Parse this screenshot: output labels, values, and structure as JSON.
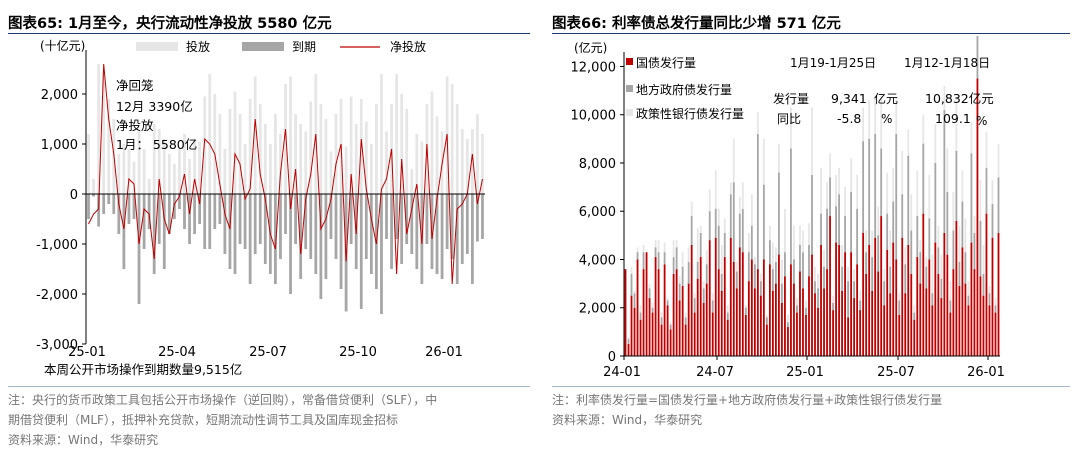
{
  "left_panel": {
    "title": "图表65:  1月至今，央行流动性净投放 5580 亿元",
    "notes": [
      "注：央行的货币政策工具包括公开市场操作（逆回购），常备借贷便利（SLF），中",
      "期借贷便利（MLF），抵押补充贷款，短期流动性调节工具及国库现金招标"
    ],
    "source": "资料来源：Wind，华泰研究"
  },
  "right_panel": {
    "title": "图表66:  利率债总发行量同比少增 571 亿元",
    "notes": [
      "注：利率债发行量=国债发行量+地方政府债发行量+政策性银行债发行量"
    ],
    "source": "资料来源：Wind，华泰研究"
  },
  "chart_data": [
    {
      "type": "bar",
      "unit_label": "(十亿元)",
      "ylim": [
        -3000,
        2800
      ],
      "yticks": [
        "2,000",
        "1,000",
        "0",
        "-1,000",
        "-2,000",
        "-3,000"
      ],
      "xticks": [
        "25-01",
        "25-04",
        "25-07",
        "25-10",
        "26-01"
      ],
      "legend": {
        "placement": "top",
        "items": [
          "投放",
          "到期",
          "净投放"
        ]
      },
      "colors": {
        "inject": "#e6e6e6",
        "mature": "#a6a6a6",
        "net": "#c00000"
      },
      "annotations": [
        "净回笼",
        "12月   3390亿",
        "净投放",
        "1月：  5580亿"
      ],
      "footer_text": "本周公开市场操作到期数量9,515亿",
      "series": [
        {
          "name": "投放",
          "values": [
            1200,
            300,
            2600,
            2450,
            1900,
            1500,
            800,
            1000,
            900,
            650,
            1250,
            900,
            300,
            1400,
            1300,
            1100,
            800,
            600,
            900,
            1200,
            700,
            1100,
            1050,
            1950,
            2400,
            2000,
            1600,
            900,
            1700,
            2050,
            1600,
            1000,
            1900,
            2350,
            1800,
            1400,
            1000,
            1600,
            1200,
            2200,
            2350,
            1600,
            1400,
            1250,
            1850,
            2400,
            1800,
            1500,
            850,
            1600,
            1900,
            950,
            1950,
            1400,
            1900,
            1450,
            1000,
            1800,
            2400,
            1250,
            1800,
            2400,
            2000,
            1700,
            500,
            1200,
            1050,
            1800,
            2050,
            1550,
            1250,
            2350,
            2200,
            1800,
            1300,
            1100,
            1300,
            1600,
            1200
          ]
        },
        {
          "name": "到期",
          "values": [
            -500,
            -50,
            -650,
            -400,
            -200,
            -400,
            -800,
            -1500,
            -600,
            -500,
            -2200,
            -1100,
            -700,
            -1600,
            -1000,
            -1500,
            -800,
            -500,
            -300,
            -700,
            -1000,
            -800,
            -600,
            -1100,
            -1100,
            -700,
            -600,
            -1200,
            -1500,
            -1600,
            -1000,
            -1100,
            -1800,
            -1200,
            -1000,
            -1400,
            -1600,
            -1800,
            -1300,
            -800,
            -2000,
            -1000,
            -1700,
            -1100,
            -1300,
            -1600,
            -2100,
            -1700,
            -900,
            -1300,
            -1900,
            -2350,
            -1000,
            -1500,
            -2300,
            -1300,
            -1600,
            -1900,
            -2400,
            -900,
            -1500,
            -900,
            -1400,
            -1000,
            -1200,
            -1500,
            -1800,
            -1000,
            -1500,
            -1600,
            -1700,
            -1100,
            -1300,
            -1800,
            -1400,
            -1200,
            -1800,
            -950,
            -900
          ]
        },
        {
          "name": "净投放",
          "values": [
            -600,
            -400,
            -300,
            2600,
            1500,
            800,
            -200,
            -700,
            300,
            200,
            -1000,
            -300,
            -400,
            -1300,
            300,
            -500,
            -800,
            -200,
            -50,
            400,
            -400,
            300,
            -200,
            1100,
            1000,
            800,
            200,
            -400,
            -700,
            800,
            600,
            -100,
            100,
            1500,
            400,
            -100,
            -800,
            -1100,
            400,
            1300,
            -300,
            500,
            -1200,
            -100,
            400,
            1200,
            -700,
            -500,
            -100,
            600,
            1000,
            -1350,
            400,
            -800,
            1100,
            100,
            -500,
            -1000,
            100,
            300,
            900,
            -1600,
            700,
            -800,
            -300,
            200,
            -1000,
            1000,
            -900,
            -100,
            600,
            1200,
            -1800,
            -300,
            -200,
            0,
            800,
            -200,
            300
          ]
        }
      ]
    },
    {
      "type": "bar",
      "unit_label": "(亿元)",
      "ylim": [
        0,
        12600
      ],
      "yticks": [
        "12,000",
        "10,000",
        "8,000",
        "6,000",
        "4,000",
        "2,000",
        "0"
      ],
      "xticks": [
        "24-01",
        "24-07",
        "25-01",
        "25-07",
        "26-01"
      ],
      "legend": {
        "placement": "top-left",
        "items": [
          "国债发行量",
          "地方政府债发行量",
          "政策性银行债发行量"
        ]
      },
      "colors": {
        "gov": "#c00000",
        "local": "#a6a6a6",
        "policy": "#e6e6e6"
      },
      "table": {
        "headers": [
          "1月19-1月25日",
          "1月12-1月18日"
        ],
        "rows": [
          {
            "label": "发行量",
            "v1": "9,341",
            "u1": "亿元",
            "v2": "10,832亿元"
          },
          {
            "label": "同比",
            "v1": "-5.8",
            "u1": "%",
            "v2": "109.1",
            "u2": "%"
          }
        ]
      },
      "series": [
        {
          "name": "国债发行量",
          "values": [
            3600,
            500,
            2500,
            2000,
            4000,
            1500,
            3600,
            4300,
            2400,
            1800,
            4100,
            3600,
            1300,
            3800,
            2100,
            1100,
            3400,
            3600,
            2300,
            2900,
            1300,
            3000,
            4600,
            1800,
            3200,
            4100,
            2200,
            3000,
            4800,
            1800,
            4900,
            3600,
            2700,
            4100,
            1500,
            4900,
            3900,
            2800,
            4500,
            4300,
            1700,
            3100,
            4000,
            2800,
            3600,
            2500,
            4000,
            1300,
            3800,
            2700,
            3000,
            4200,
            2200,
            3300,
            1200,
            3800,
            3000,
            1800,
            3500,
            2800,
            1700,
            3300,
            4200,
            2600,
            2000,
            4600,
            2800,
            3600,
            5800,
            1900,
            4700,
            4600,
            2700,
            4300,
            1600,
            4300,
            2400,
            3800,
            1900,
            5100,
            3400,
            4600,
            2700,
            4900,
            3500,
            5800,
            2100,
            4400,
            2600,
            4700,
            4000,
            1700,
            4900,
            2600,
            4600,
            3400,
            1500,
            4100,
            3000,
            5900,
            2800,
            4000,
            2100,
            4700,
            3400,
            2400,
            5100,
            4200,
            1800,
            3600,
            5600,
            2900,
            4500,
            3000,
            2100,
            4700,
            3600,
            11500,
            3300,
            2500,
            5900,
            2100,
            4900,
            1800,
            5100
          ]
        },
        {
          "name": "地方政府债发行量",
          "values": [
            0,
            200,
            900,
            600,
            300,
            300,
            700,
            0,
            400,
            200,
            400,
            700,
            300,
            500,
            200,
            200,
            700,
            900,
            700,
            800,
            300,
            900,
            1200,
            600,
            700,
            1000,
            600,
            800,
            1200,
            500,
            1200,
            1800,
            700,
            1000,
            300,
            1800,
            3300,
            700,
            1400,
            1800,
            300,
            1200,
            1400,
            1000,
            5600,
            600,
            3100,
            300,
            1000,
            900,
            900,
            3400,
            800,
            1000,
            200,
            4800,
            1000,
            300,
            1100,
            1500,
            300,
            1300,
            3300,
            500,
            800,
            1300,
            900,
            2500,
            1600,
            300,
            1500,
            2100,
            1000,
            1500,
            1500,
            2500,
            700,
            2300,
            400,
            3800,
            900,
            4400,
            1400,
            4300,
            1500,
            2800,
            1000,
            1500,
            1100,
            1700,
            5200,
            600,
            1800,
            1200,
            3700,
            1800,
            300,
            1700,
            1300,
            2900,
            900,
            1700,
            500,
            3300,
            1100,
            800,
            5100,
            2600,
            500,
            1600,
            2900,
            1000,
            1900,
            1300,
            400,
            3700,
            1500,
            2200,
            2300,
            900,
            1900,
            500,
            1400,
            300,
            2300
          ]
        },
        {
          "name": "政策性银行债发行量",
          "values": [
            0,
            100,
            300,
            100,
            200,
            300,
            300,
            0,
            200,
            200,
            300,
            500,
            200,
            400,
            100,
            100,
            700,
            300,
            300,
            600,
            200,
            600,
            600,
            200,
            1400,
            300,
            300,
            600,
            900,
            300,
            1600,
            700,
            1200,
            600,
            300,
            500,
            1800,
            400,
            700,
            1100,
            100,
            800,
            1300,
            300,
            900,
            300,
            1900,
            100,
            600,
            1100,
            600,
            1200,
            1000,
            1800,
            300,
            1700,
            1400,
            300,
            800,
            900,
            300,
            900,
            2800,
            600,
            600,
            1900,
            700,
            1100,
            1000,
            300,
            1300,
            1100,
            900,
            1200,
            600,
            1400,
            500,
            1400,
            400,
            1400,
            900,
            1600,
            1100,
            1600,
            1200,
            2200,
            500,
            1700,
            1500,
            1400,
            1500,
            300,
            1800,
            700,
            1100,
            1500,
            300,
            1900,
            500,
            1200,
            400,
            1800,
            1600,
            1600,
            900,
            1000,
            1000,
            1800,
            800,
            1600,
            2200,
            1500,
            1300,
            1400,
            600,
            1300,
            700,
            700,
            1700,
            1200,
            1500,
            300,
            1000,
            300,
            1400
          ]
        }
      ]
    }
  ]
}
